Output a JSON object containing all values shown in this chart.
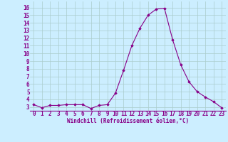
{
  "x": [
    0,
    1,
    2,
    3,
    4,
    5,
    6,
    7,
    8,
    9,
    10,
    11,
    12,
    13,
    14,
    15,
    16,
    17,
    18,
    19,
    20,
    21,
    22,
    23
  ],
  "y": [
    3.3,
    2.9,
    3.2,
    3.2,
    3.3,
    3.3,
    3.3,
    2.8,
    3.2,
    3.3,
    4.8,
    7.8,
    11.0,
    13.3,
    15.0,
    15.8,
    15.9,
    11.8,
    8.5,
    6.3,
    5.0,
    4.3,
    3.7,
    2.9
  ],
  "line_color": "#880088",
  "marker": "D",
  "marker_size": 1.8,
  "bg_color": "#cceeff",
  "grid_color": "#aacccc",
  "xlabel": "Windchill (Refroidissement éolien,°C)",
  "xlabel_color": "#880088",
  "tick_color": "#880088",
  "ylim": [
    2.5,
    16.8
  ],
  "xlim": [
    -0.5,
    23.5
  ],
  "yticks": [
    3,
    4,
    5,
    6,
    7,
    8,
    9,
    10,
    11,
    12,
    13,
    14,
    15,
    16
  ],
  "xticks": [
    0,
    1,
    2,
    3,
    4,
    5,
    6,
    7,
    8,
    9,
    10,
    11,
    12,
    13,
    14,
    15,
    16,
    17,
    18,
    19,
    20,
    21,
    22,
    23
  ],
  "tick_fontsize": 5.5,
  "xlabel_fontsize": 5.5
}
